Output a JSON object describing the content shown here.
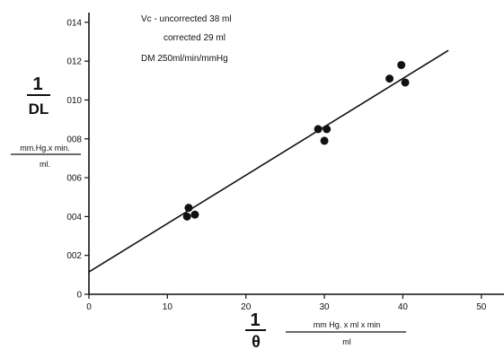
{
  "chart_data": {
    "type": "scatter",
    "title": "",
    "x": [
      12.5,
      12.7,
      13.5,
      29.2,
      30.0,
      30.3,
      38.3,
      39.8,
      40.3
    ],
    "y": [
      0.04,
      0.0445,
      0.041,
      0.085,
      0.079,
      0.085,
      0.111,
      0.118,
      0.109
    ],
    "xlim": [
      0,
      53
    ],
    "ylim": [
      0,
      0.145
    ],
    "x_ticks": [
      0,
      10,
      20,
      30,
      40,
      50
    ],
    "x_tick_labels": [
      "0",
      "10",
      "20",
      "30",
      "40",
      "50"
    ],
    "y_ticks": [
      0,
      0.02,
      0.04,
      0.06,
      0.08,
      0.1,
      0.12,
      0.14
    ],
    "y_tick_labels": [
      "0",
      "002",
      "004",
      "006",
      "008",
      "010",
      "012",
      "014"
    ],
    "fit_line": {
      "x": [
        0,
        45.8
      ],
      "y": [
        0.0115,
        0.1255
      ]
    },
    "grid": false,
    "xlabel": {
      "numerator": "1",
      "denominator": "θ",
      "units_numerator": "mm Hg. x ml x min",
      "units_denominator": "ml"
    },
    "ylabel": {
      "numerator": "1",
      "denominator": "DL",
      "units_numerator": "mm.Hg.x min.",
      "units_denominator": "ml."
    },
    "annotations": [
      "Vc - uncorrected   38 ml",
      "corrected   29 ml",
      "DM  250ml/min/mmHg"
    ]
  }
}
